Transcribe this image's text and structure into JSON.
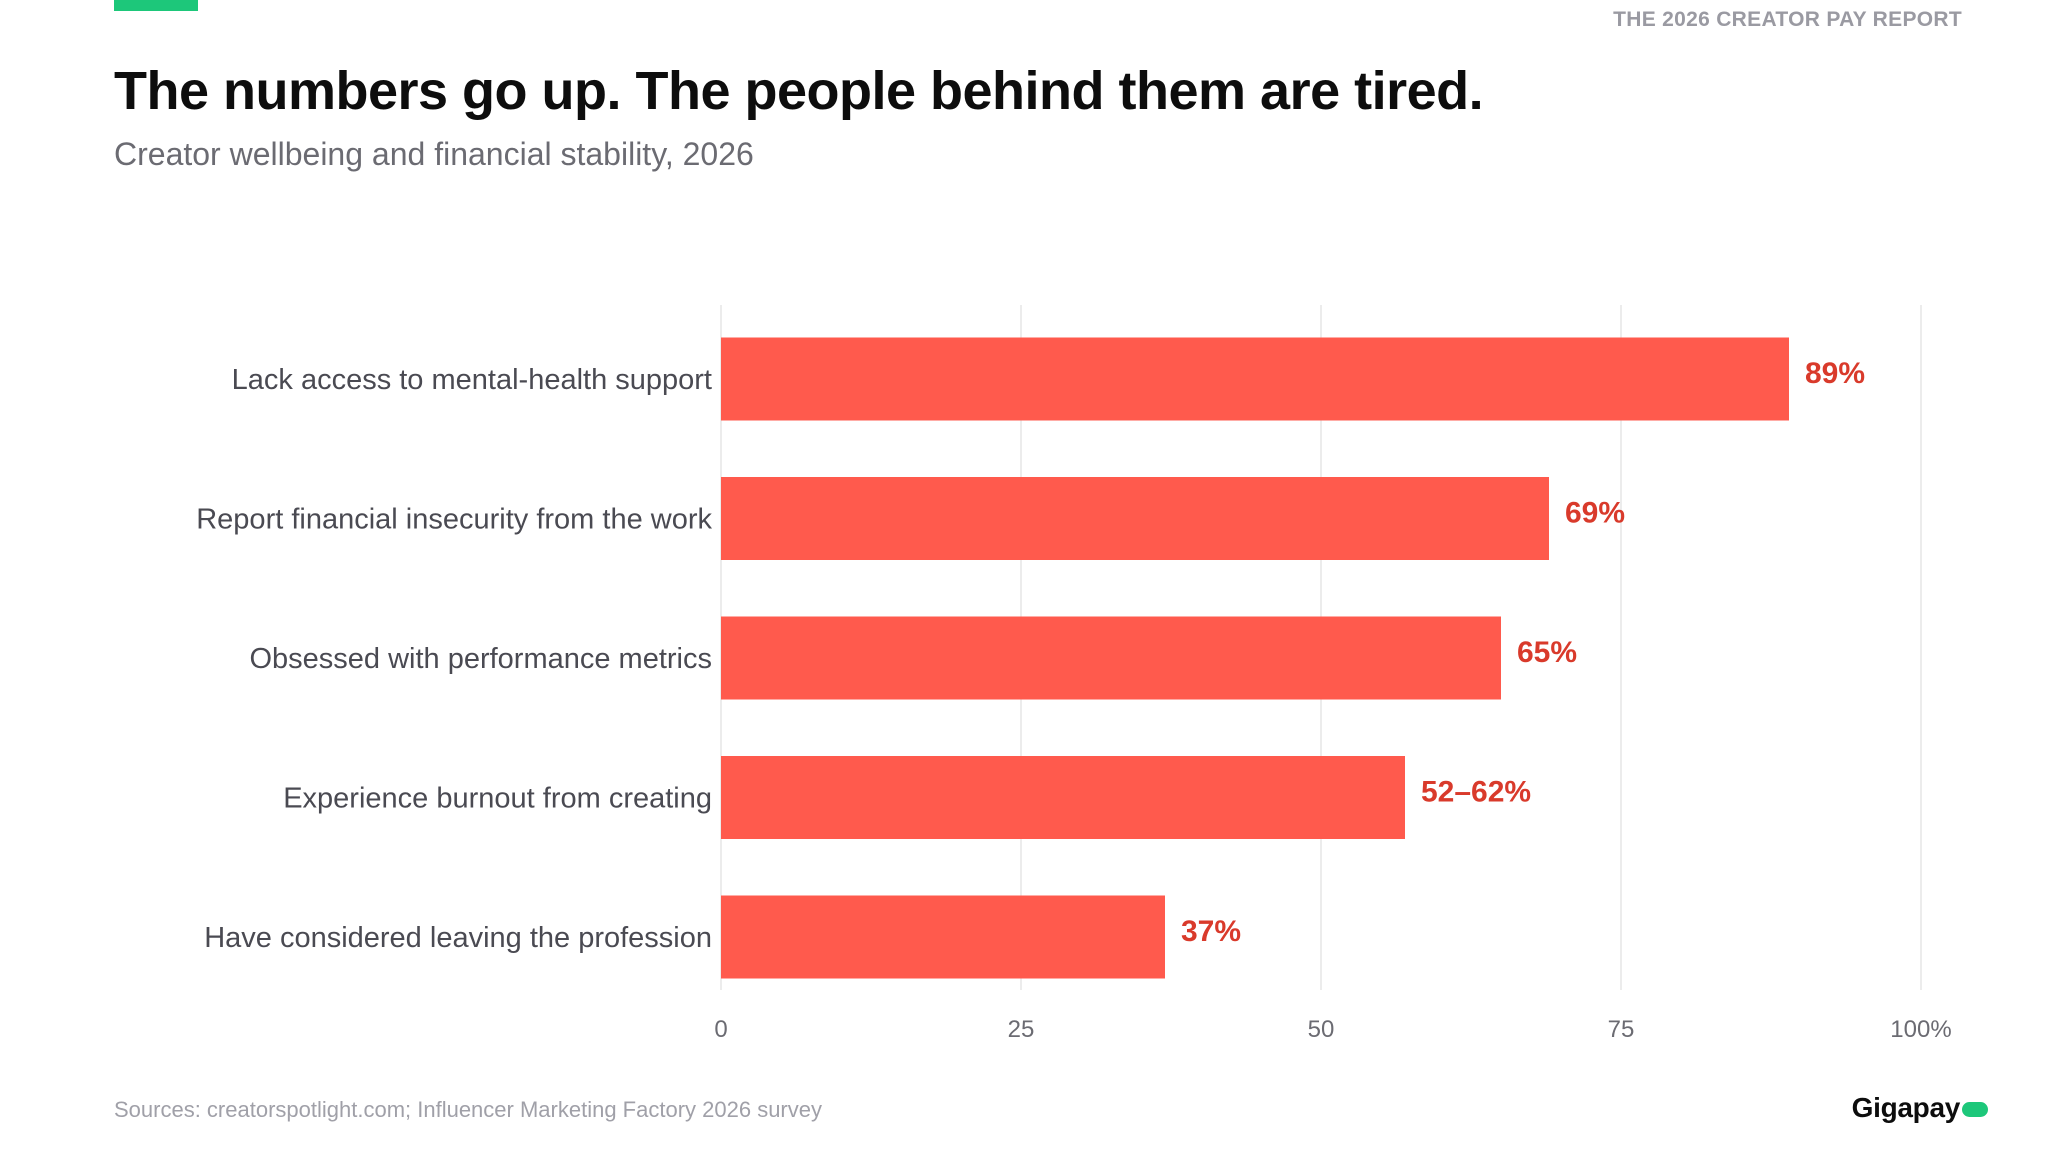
{
  "header": {
    "report_label": "THE 2026 CREATOR PAY REPORT",
    "title": "The numbers go up. The people behind them are tired.",
    "subtitle": "Creator wellbeing and financial stability, 2026"
  },
  "footer": {
    "sources": "Sources: creatorspotlight.com; Influencer Marketing Factory 2026 survey",
    "logo_text": "Gigapay"
  },
  "colors": {
    "accent_green": "#1dc77a",
    "bar": "#ff5a4d",
    "value_label": "#d93a2b",
    "grid": "#e6e6e6",
    "category_text": "#4a4a52",
    "tick_text": "#6b6b72"
  },
  "chart_data": {
    "type": "bar",
    "orientation": "horizontal",
    "title": "The numbers go up. The people behind them are tired.",
    "subtitle": "Creator wellbeing and financial stability, 2026",
    "categories": [
      "Lack access to mental-health support",
      "Report financial insecurity from the work",
      "Obsessed with performance metrics",
      "Experience burnout from creating",
      "Have considered leaving the profession"
    ],
    "values": [
      89,
      69,
      65,
      57,
      37
    ],
    "value_labels": [
      "89%",
      "69%",
      "65%",
      "52–62%",
      "37%"
    ],
    "xlim": [
      0,
      100
    ],
    "x_ticks": [
      0,
      25,
      50,
      75,
      100
    ],
    "x_tick_labels": [
      "0",
      "25",
      "50",
      "75",
      "100%"
    ],
    "xlabel": "",
    "ylabel": "",
    "grid": true,
    "legend": "none"
  }
}
